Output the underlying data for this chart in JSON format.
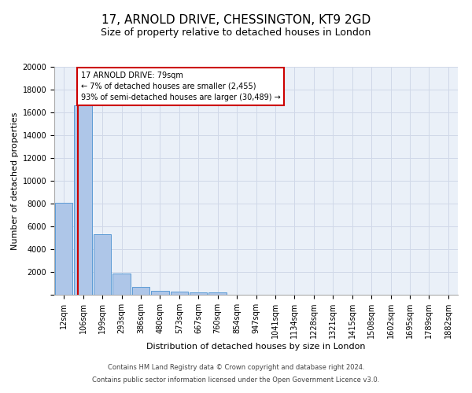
{
  "title1": "17, ARNOLD DRIVE, CHESSINGTON, KT9 2GD",
  "title2": "Size of property relative to detached houses in London",
  "xlabel": "Distribution of detached houses by size in London",
  "ylabel": "Number of detached properties",
  "footnote1": "Contains HM Land Registry data © Crown copyright and database right 2024.",
  "footnote2": "Contains public sector information licensed under the Open Government Licence v3.0.",
  "bin_labels": [
    "12sqm",
    "106sqm",
    "199sqm",
    "293sqm",
    "386sqm",
    "480sqm",
    "573sqm",
    "667sqm",
    "760sqm",
    "854sqm",
    "947sqm",
    "1041sqm",
    "1134sqm",
    "1228sqm",
    "1321sqm",
    "1415sqm",
    "1508sqm",
    "1602sqm",
    "1695sqm",
    "1789sqm",
    "1882sqm"
  ],
  "bar_heights": [
    8100,
    16600,
    5300,
    1850,
    700,
    360,
    270,
    190,
    190,
    0,
    0,
    0,
    0,
    0,
    0,
    0,
    0,
    0,
    0,
    0,
    0
  ],
  "bar_color": "#aec6e8",
  "bar_edge_color": "#5b9bd5",
  "vline_x": 0.72,
  "vline_color": "#cc0000",
  "annotation_line1": "17 ARNOLD DRIVE: 79sqm",
  "annotation_line2": "← 7% of detached houses are smaller (2,455)",
  "annotation_line3": "93% of semi-detached houses are larger (30,489) →",
  "annotation_box_color": "#cc0000",
  "ylim": [
    0,
    20000
  ],
  "yticks": [
    0,
    2000,
    4000,
    6000,
    8000,
    10000,
    12000,
    14000,
    16000,
    18000,
    20000
  ],
  "grid_color": "#d0d8e8",
  "background_color": "#eaf0f8",
  "title1_fontsize": 11,
  "title2_fontsize": 9,
  "axis_label_fontsize": 8,
  "tick_fontsize": 7,
  "footnote_fontsize": 6
}
